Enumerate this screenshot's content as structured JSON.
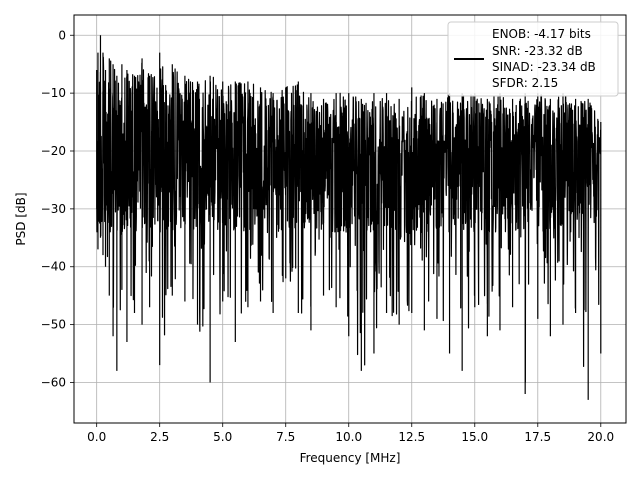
{
  "chart_data": {
    "type": "line",
    "title": "",
    "xlabel": "Frequency [MHz]",
    "ylabel": "PSD [dB]",
    "xlim": [
      -0.9,
      21.0
    ],
    "ylim": [
      -67,
      3.5
    ],
    "xticks": [
      0.0,
      2.5,
      5.0,
      7.5,
      10.0,
      12.5,
      15.0,
      17.5,
      20.0
    ],
    "xtick_labels": [
      "0.0",
      "2.5",
      "5.0",
      "7.5",
      "10.0",
      "12.5",
      "15.0",
      "17.5",
      "20.0"
    ],
    "yticks": [
      0,
      -10,
      -20,
      -30,
      -40,
      -50,
      -60
    ],
    "ytick_labels": [
      "0",
      "−10",
      "−20",
      "−30",
      "−40",
      "−50",
      "−60"
    ],
    "grid": true,
    "legend_position": "top-right",
    "legend_lines": [
      "ENOB: -4.17 bits",
      "SNR: -23.32 dB",
      "SINAD: -23.34 dB",
      "SFDR: 2.15"
    ],
    "series": [
      {
        "color": "#000000",
        "x": [
          0.0,
          0.05,
          0.15,
          0.25,
          0.35,
          0.5,
          0.65,
          0.8,
          1.0,
          1.2,
          1.5,
          1.8,
          2.1,
          2.5,
          3.0,
          3.5,
          4.0,
          4.5,
          5.0,
          5.5,
          6.0,
          6.5,
          7.0,
          7.5,
          8.0,
          8.5,
          9.0,
          9.5,
          10.0,
          10.5,
          11.0,
          11.5,
          12.0,
          12.5,
          13.0,
          13.5,
          14.0,
          14.5,
          15.0,
          15.5,
          16.0,
          16.5,
          17.0,
          17.5,
          18.0,
          18.5,
          19.0,
          19.5,
          20.0
        ],
        "top": [
          -6,
          -3,
          0,
          -3,
          -6,
          -4,
          -5,
          -7,
          -5,
          -6,
          -7,
          -4,
          -7,
          -3,
          -5,
          -7,
          -8,
          -7,
          -8,
          -8,
          -8,
          -9,
          -10,
          -9,
          -8,
          -10,
          -11,
          -10,
          -10,
          -11,
          -10,
          -10,
          -11,
          -9,
          -10,
          -11,
          -10,
          -10,
          -10,
          -11,
          -10,
          -11,
          -10,
          -10,
          -11,
          -10,
          -11,
          -11,
          -15
        ],
        "bottom": [
          -30,
          -37,
          -35,
          -38,
          -40,
          -45,
          -52,
          -58,
          -44,
          -53,
          -48,
          -50,
          -47,
          -57,
          -45,
          -46,
          -50,
          -60,
          -46,
          -53,
          -47,
          -46,
          -48,
          -42,
          -48,
          -51,
          -45,
          -47,
          -52,
          -58,
          -55,
          -48,
          -50,
          -48,
          -51,
          -49,
          -55,
          -58,
          -47,
          -52,
          -51,
          -47,
          -62,
          -49,
          -52,
          -50,
          -48,
          -63,
          -55
        ]
      }
    ]
  }
}
